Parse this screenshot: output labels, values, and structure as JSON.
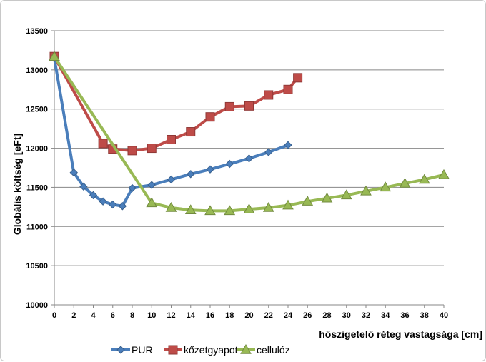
{
  "chart_data": {
    "type": "line",
    "title": "",
    "xlabel": "hőszigetelő réteg vastagsága [cm]",
    "ylabel": "Globális költség [eFt]",
    "xlim": [
      0,
      40
    ],
    "ylim": [
      10000,
      13500
    ],
    "xticks": [
      0,
      2,
      4,
      6,
      8,
      10,
      12,
      14,
      16,
      18,
      20,
      22,
      24,
      26,
      28,
      30,
      32,
      34,
      36,
      38,
      40
    ],
    "yticks": [
      10000,
      10500,
      11000,
      11500,
      12000,
      12500,
      13000,
      13500
    ],
    "grid": "horizontal",
    "legend_position": "bottom",
    "series": [
      {
        "name": "PUR",
        "color": "#4a7ebb",
        "marker": "diamond",
        "x": [
          0,
          2,
          3,
          4,
          5,
          6,
          7,
          8,
          10,
          12,
          14,
          16,
          18,
          20,
          22,
          24
        ],
        "y": [
          13150,
          11690,
          11510,
          11400,
          11320,
          11280,
          11260,
          11490,
          11530,
          11600,
          11670,
          11730,
          11800,
          11870,
          11950,
          12040
        ]
      },
      {
        "name": "kőzetgyapot",
        "color": "#be4b48",
        "marker": "square",
        "x": [
          0,
          5,
          6,
          8,
          10,
          12,
          14,
          16,
          18,
          20,
          22,
          24,
          25
        ],
        "y": [
          13170,
          12060,
          11990,
          11970,
          12000,
          12110,
          12210,
          12400,
          12530,
          12540,
          12680,
          12750,
          12900
        ]
      },
      {
        "name": "cellulóz",
        "color": "#98b954",
        "marker": "triangle",
        "x": [
          0,
          10,
          12,
          14,
          16,
          18,
          20,
          22,
          24,
          26,
          28,
          30,
          32,
          34,
          36,
          38,
          40
        ],
        "y": [
          13170,
          11300,
          11240,
          11210,
          11200,
          11200,
          11220,
          11240,
          11270,
          11320,
          11360,
          11400,
          11450,
          11500,
          11550,
          11600,
          11660
        ]
      }
    ]
  }
}
